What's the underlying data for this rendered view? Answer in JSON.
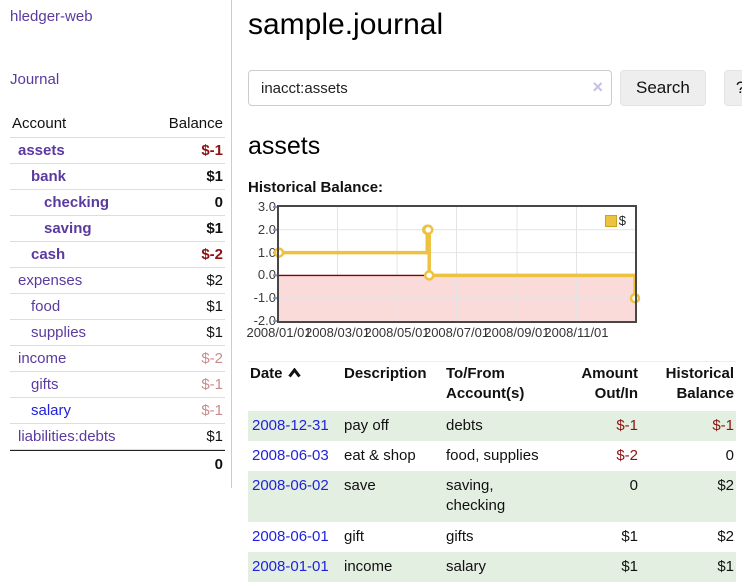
{
  "app": {
    "brand": "hledger-web"
  },
  "colors": {
    "accent_purple": "#5b3aa0",
    "link_blue": "#2222dd",
    "negative_red": "#8e1212",
    "faded_negative_red": "#c98c8c",
    "row_stripe_green": "#e3efe1",
    "chart_series_yellow": "#edc240",
    "chart_negative_fill": "#fbdada",
    "chart_zero_line": "#8b0000"
  },
  "sidebar": {
    "journal_link": "Journal",
    "accounts_table": {
      "headers": [
        "Account",
        "Balance"
      ],
      "rows": [
        {
          "name": "assets",
          "depth": 1,
          "balance": "$-1",
          "bold": true,
          "balance_color": "negative"
        },
        {
          "name": "bank",
          "depth": 2,
          "balance": "$1",
          "bold": true,
          "balance_color": "normal"
        },
        {
          "name": "checking",
          "depth": 3,
          "balance": "0",
          "bold": true,
          "balance_color": "normal"
        },
        {
          "name": "saving",
          "depth": 3,
          "balance": "$1",
          "bold": true,
          "balance_color": "normal"
        },
        {
          "name": "cash",
          "depth": 2,
          "balance": "$-2",
          "bold": true,
          "balance_color": "negative"
        },
        {
          "name": "expenses",
          "depth": 1,
          "balance": "$2",
          "bold": false,
          "balance_color": "normal"
        },
        {
          "name": "food",
          "depth": 2,
          "balance": "$1",
          "bold": false,
          "balance_color": "normal"
        },
        {
          "name": "supplies",
          "depth": 2,
          "balance": "$1",
          "bold": false,
          "balance_color": "normal"
        },
        {
          "name": "income",
          "depth": 1,
          "balance": "$-2",
          "bold": false,
          "balance_color": "negative-faded"
        },
        {
          "name": "gifts",
          "depth": 2,
          "balance": "$-1",
          "bold": false,
          "balance_color": "negative-faded"
        },
        {
          "name": "salary",
          "depth": 2,
          "balance": "$-1",
          "bold": false,
          "balance_color": "negative-faded",
          "link_color": "blue"
        },
        {
          "name": "liabilities:debts",
          "depth": 1,
          "balance": "$1",
          "bold": false,
          "balance_color": "normal"
        }
      ],
      "total": "0"
    }
  },
  "main": {
    "title": "sample.journal",
    "search": {
      "value": "inacct:assets",
      "clear_icon": "×",
      "button": "Search",
      "help_button": "?"
    },
    "heading": "assets"
  },
  "chart_data": {
    "type": "line",
    "title": "Historical Balance:",
    "step": true,
    "series": [
      {
        "name": "$",
        "color": "#edc240",
        "points": [
          [
            "2008-01-01",
            1
          ],
          [
            "2008-06-01",
            2
          ],
          [
            "2008-06-02",
            2
          ],
          [
            "2008-06-03",
            0
          ],
          [
            "2008-12-31",
            -1
          ]
        ]
      }
    ],
    "xrange": [
      "2008-01-01",
      "2008-12-31"
    ],
    "ylim": [
      -2,
      3
    ],
    "yticks": [
      "3.0",
      "2.0",
      "1.0",
      "0.0",
      "-1.0",
      "-2.0"
    ],
    "xticks": [
      "2008/01/01",
      "2008/03/01",
      "2008/05/01",
      "2008/07/01",
      "2008/09/01",
      "2008/11/01"
    ],
    "grid": true,
    "legend_position": "top-right",
    "zero_line_color": "#8b0000",
    "negative_fill": "#fbdada"
  },
  "register_table": {
    "headers": [
      {
        "label": "Date",
        "sorted": "asc"
      },
      {
        "label": "Description"
      },
      {
        "label": "To/From Account(s)"
      },
      {
        "label": "Amount Out/In"
      },
      {
        "label": "Historical Balance"
      }
    ],
    "rows": [
      {
        "date": "2008-12-31",
        "description": "pay off",
        "accounts": "debts",
        "amount": "$-1",
        "balance": "$-1",
        "amount_negative": true,
        "balance_negative": true
      },
      {
        "date": "2008-06-03",
        "description": "eat & shop",
        "accounts": "food, supplies",
        "amount": "$-2",
        "balance": "0",
        "amount_negative": true,
        "balance_negative": false
      },
      {
        "date": "2008-06-02",
        "description": "save",
        "accounts": "saving, checking",
        "amount": "0",
        "balance": "$2",
        "amount_negative": false,
        "balance_negative": false
      },
      {
        "date": "2008-06-01",
        "description": "gift",
        "accounts": "gifts",
        "amount": "$1",
        "balance": "$2",
        "amount_negative": false,
        "balance_negative": false
      },
      {
        "date": "2008-01-01",
        "description": "income",
        "accounts": "salary",
        "amount": "$1",
        "balance": "$1",
        "amount_negative": false,
        "balance_negative": false
      }
    ]
  }
}
